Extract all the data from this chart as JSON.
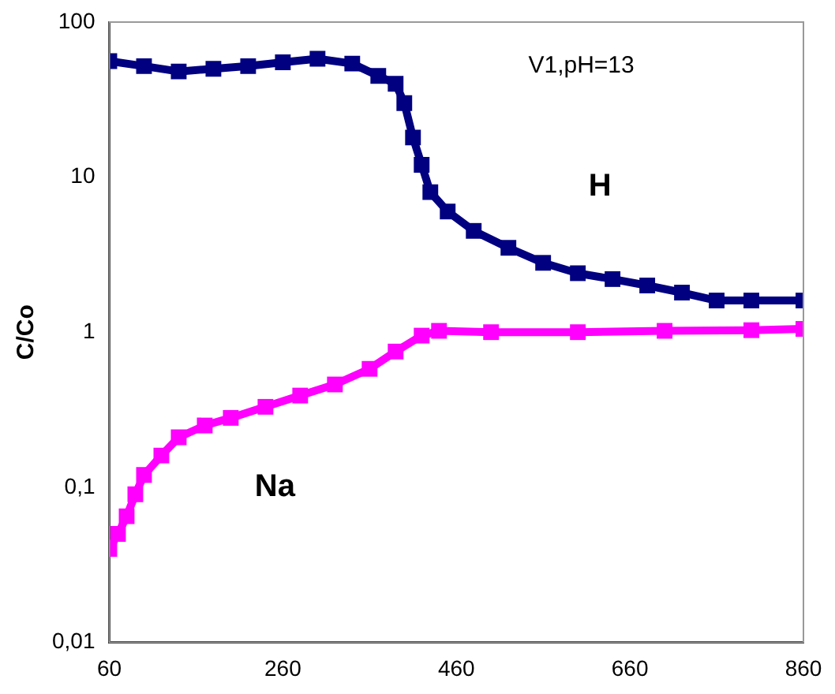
{
  "chart_data": {
    "type": "line",
    "ylabel": "C/Co",
    "log": "y",
    "grid": false,
    "legend": false,
    "marker": "square",
    "line_style": "solid",
    "xlim": [
      60,
      860
    ],
    "xticks": [
      60,
      260,
      460,
      660,
      860
    ],
    "ylim": [
      0.01,
      100
    ],
    "yticks": [
      {
        "value": 0.01,
        "label": "0,01"
      },
      {
        "value": 0.1,
        "label": "0,1"
      },
      1,
      10,
      100
    ],
    "annotations": [
      "V1,pH=13"
    ],
    "series": [
      {
        "name": "H",
        "color": "#000080",
        "x": [
          60,
          100,
          140,
          180,
          220,
          260,
          300,
          340,
          370,
          390,
          400,
          410,
          420,
          430,
          450,
          480,
          520,
          560,
          600,
          640,
          680,
          720,
          760,
          800,
          860
        ],
        "values": [
          56,
          52,
          48,
          50,
          52,
          55,
          58,
          54,
          45,
          40,
          30,
          18,
          12,
          8,
          6,
          4.5,
          3.5,
          2.8,
          2.4,
          2.2,
          2,
          1.8,
          1.6,
          1.6,
          1.6
        ]
      },
      {
        "name": "Na",
        "color": "#ff00ff",
        "x": [
          60,
          70,
          80,
          90,
          100,
          120,
          140,
          170,
          200,
          240,
          280,
          320,
          360,
          390,
          420,
          440,
          500,
          600,
          700,
          800,
          860
        ],
        "values": [
          0.04,
          0.05,
          0.065,
          0.09,
          0.12,
          0.16,
          0.21,
          0.25,
          0.28,
          0.33,
          0.39,
          0.46,
          0.58,
          0.75,
          0.95,
          1.02,
          1,
          1,
          1.02,
          1.03,
          1.05
        ]
      }
    ]
  }
}
